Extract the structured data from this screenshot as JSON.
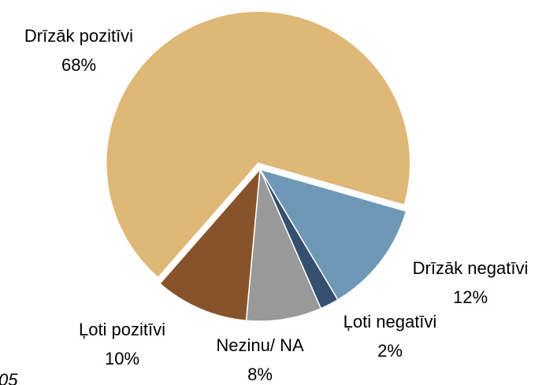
{
  "chart_data": {
    "type": "pie",
    "categories": [
      "Drīzāk pozitīvi",
      "Drīzāk negatīvi",
      "Ļoti negatīvi",
      "Nezinu/ NA",
      "Ļoti pozitīvi"
    ],
    "values": [
      68,
      12,
      2,
      8,
      10
    ],
    "value_labels": [
      "68%",
      "12%",
      "2%",
      "8%",
      "10%"
    ],
    "colors": [
      "#dfb877",
      "#6e98b5",
      "#35506e",
      "#999999",
      "#87532b"
    ],
    "exploded": [
      true,
      false,
      false,
      false,
      false
    ],
    "annotation": "05"
  }
}
